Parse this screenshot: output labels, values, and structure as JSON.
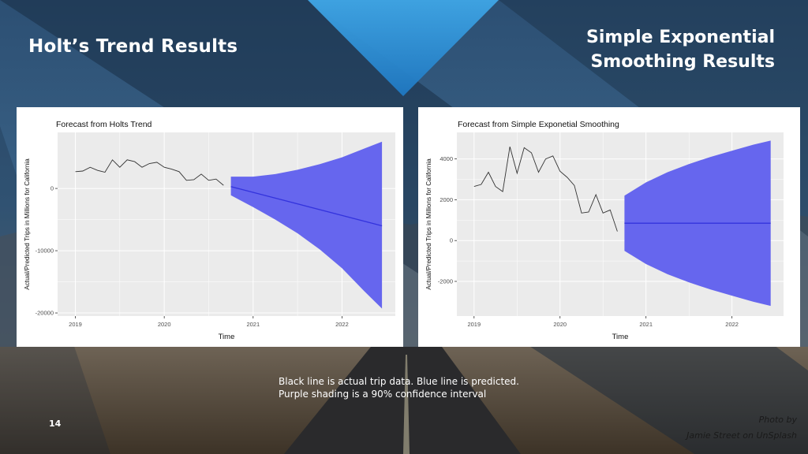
{
  "slide": {
    "left_title": "Holt’s Trend Results",
    "right_title_line1": "Simple Exponential",
    "right_title_line2": "Smoothing Results",
    "caption_line1": "Black line is actual trip data. Blue line is predicted.",
    "caption_line2": "Purple shading is a 90% confidence interval",
    "slide_number": "14",
    "photo_credit_line1": "Photo by",
    "photo_credit_line2": "Jamie Street on UnSplash"
  },
  "colors": {
    "actual_line": "#333333",
    "forecast_line": "#3333dd",
    "confidence_band": "#6666ee",
    "plot_background": "#ebebeb",
    "grid": "#ffffff"
  },
  "chart_data": [
    {
      "type": "line",
      "title": "Forecast from Holts Trend",
      "xlabel": "Time",
      "ylabel": "Actual/Predicted Trips in Millions for California",
      "xlim": [
        2018.8,
        2022.6
      ],
      "ylim": [
        -20500,
        9000
      ],
      "x_ticks": [
        2019,
        2020,
        2021,
        2022
      ],
      "x_tick_labels": [
        "2019",
        "2020",
        "2021",
        "2022"
      ],
      "y_ticks": [
        -20000,
        -10000,
        0
      ],
      "y_tick_labels": [
        "-20000",
        "-10000",
        "0"
      ],
      "grid": true,
      "series": [
        {
          "role": "actual",
          "x": [
            2019.0,
            2019.083,
            2019.167,
            2019.25,
            2019.333,
            2019.417,
            2019.5,
            2019.583,
            2019.667,
            2019.75,
            2019.833,
            2019.917,
            2020.0,
            2020.083,
            2020.167,
            2020.25,
            2020.333,
            2020.417,
            2020.5,
            2020.583,
            2020.667
          ],
          "y": [
            2700,
            2800,
            3400,
            2900,
            2600,
            4600,
            3400,
            4600,
            4300,
            3400,
            4000,
            4200,
            3400,
            3100,
            2700,
            1300,
            1400,
            2300,
            1300,
            1500,
            500
          ]
        },
        {
          "role": "forecast",
          "x": [
            2020.75,
            2022.45
          ],
          "y": [
            300,
            -6000
          ]
        },
        {
          "role": "confidence-upper",
          "x": [
            2020.75,
            2021.0,
            2021.25,
            2021.5,
            2021.75,
            2022.0,
            2022.25,
            2022.45
          ],
          "y": [
            1900,
            1900,
            2300,
            3000,
            3900,
            5000,
            6400,
            7500
          ]
        },
        {
          "role": "confidence-lower",
          "x": [
            2020.75,
            2021.0,
            2021.25,
            2021.5,
            2021.75,
            2022.0,
            2022.25,
            2022.45
          ],
          "y": [
            -1100,
            -3000,
            -5000,
            -7200,
            -9800,
            -12800,
            -16500,
            -19300
          ]
        }
      ]
    },
    {
      "type": "line",
      "title": "Forecast from Simple Exponetial Smoothing",
      "xlabel": "Time",
      "ylabel": "Actual/Predicted Trips in Millions for California",
      "xlim": [
        2018.8,
        2022.6
      ],
      "ylim": [
        -3700,
        5300
      ],
      "x_ticks": [
        2019,
        2020,
        2021,
        2022
      ],
      "x_tick_labels": [
        "2019",
        "2020",
        "2021",
        "2022"
      ],
      "y_ticks": [
        -2000,
        0,
        2000,
        4000
      ],
      "y_tick_labels": [
        "-2000",
        "0",
        "2000",
        "4000"
      ],
      "grid": true,
      "series": [
        {
          "role": "actual",
          "x": [
            2019.0,
            2019.083,
            2019.167,
            2019.25,
            2019.333,
            2019.417,
            2019.5,
            2019.583,
            2019.667,
            2019.75,
            2019.833,
            2019.917,
            2020.0,
            2020.083,
            2020.167,
            2020.25,
            2020.333,
            2020.417,
            2020.5,
            2020.583,
            2020.667
          ],
          "y": [
            2650,
            2750,
            3350,
            2650,
            2400,
            4600,
            3300,
            4550,
            4300,
            3350,
            4000,
            4150,
            3400,
            3100,
            2700,
            1350,
            1400,
            2250,
            1350,
            1500,
            450
          ]
        },
        {
          "role": "forecast",
          "x": [
            2020.75,
            2022.45
          ],
          "y": [
            850,
            850
          ]
        },
        {
          "role": "confidence-upper",
          "x": [
            2020.75,
            2021.0,
            2021.25,
            2021.5,
            2021.75,
            2022.0,
            2022.25,
            2022.45
          ],
          "y": [
            2200,
            2850,
            3350,
            3750,
            4100,
            4400,
            4700,
            4900
          ]
        },
        {
          "role": "confidence-lower",
          "x": [
            2020.75,
            2021.0,
            2021.25,
            2021.5,
            2021.75,
            2022.0,
            2022.25,
            2022.45
          ],
          "y": [
            -500,
            -1150,
            -1650,
            -2050,
            -2400,
            -2700,
            -3000,
            -3200
          ]
        }
      ]
    }
  ]
}
